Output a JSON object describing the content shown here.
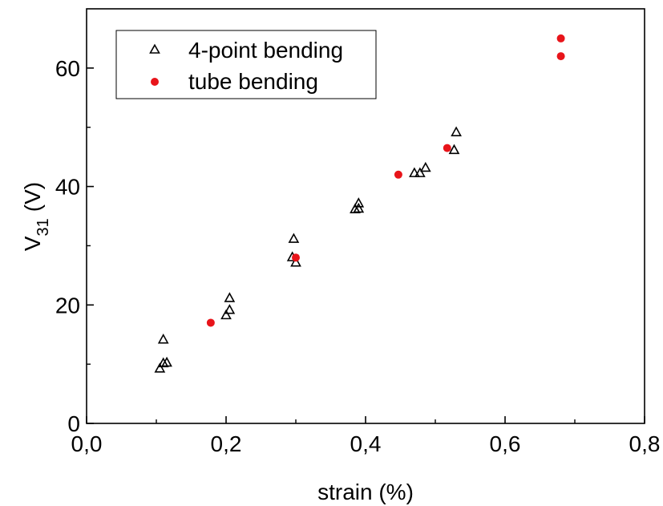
{
  "chart_data": {
    "type": "scatter",
    "title": "",
    "xlabel": "strain (%)",
    "ylabel": {
      "main": "V",
      "subscript": "31",
      "unit": "(V)"
    },
    "xlim": [
      0.0,
      0.8
    ],
    "ylim": [
      0,
      70
    ],
    "x_ticks": [
      {
        "value": 0.0,
        "label": "0,0"
      },
      {
        "value": 0.2,
        "label": "0,2"
      },
      {
        "value": 0.4,
        "label": "0,4"
      },
      {
        "value": 0.6,
        "label": "0,6"
      },
      {
        "value": 0.8,
        "label": "0,8"
      }
    ],
    "y_ticks": [
      {
        "value": 0,
        "label": "0"
      },
      {
        "value": 20,
        "label": "20"
      },
      {
        "value": 40,
        "label": "40"
      },
      {
        "value": 60,
        "label": "60"
      }
    ],
    "grid": false,
    "legend_position": "top-left",
    "series": [
      {
        "name": "4-point bending",
        "marker": "triangle-open",
        "color": "#000000",
        "points": [
          [
            0.105,
            9.2
          ],
          [
            0.11,
            10.1
          ],
          [
            0.115,
            10.2
          ],
          [
            0.11,
            14.1
          ],
          [
            0.2,
            18.2
          ],
          [
            0.205,
            19.1
          ],
          [
            0.205,
            21.1
          ],
          [
            0.295,
            28.0
          ],
          [
            0.3,
            27.1
          ],
          [
            0.297,
            31.1
          ],
          [
            0.385,
            36.1
          ],
          [
            0.39,
            36.2
          ],
          [
            0.39,
            37.1
          ],
          [
            0.47,
            42.2
          ],
          [
            0.478,
            42.2
          ],
          [
            0.486,
            43.1
          ],
          [
            0.527,
            46.1
          ],
          [
            0.53,
            49.1
          ]
        ]
      },
      {
        "name": "tube bending",
        "marker": "circle-filled",
        "color": "#e8141a",
        "points": [
          [
            0.178,
            17.0
          ],
          [
            0.3,
            28.0
          ],
          [
            0.447,
            42.0
          ],
          [
            0.517,
            46.5
          ],
          [
            0.68,
            62.0
          ],
          [
            0.68,
            65.0
          ]
        ]
      }
    ]
  }
}
